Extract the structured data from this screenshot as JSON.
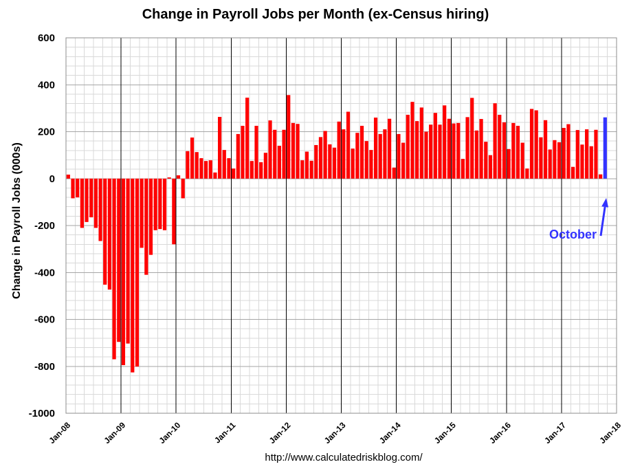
{
  "chart_data": {
    "type": "bar",
    "title": "Change in Payroll Jobs per Month (ex-Census hiring)",
    "xlabel": "",
    "ylabel": "Change in Payroll Jobs (000s)",
    "ylim": [
      -1000,
      600
    ],
    "yticks": [
      600,
      400,
      200,
      0,
      -200,
      -400,
      -600,
      -800,
      -1000
    ],
    "y_minor_step": 40,
    "xlim_months": [
      0,
      120
    ],
    "months_per_tick": 12,
    "x_minor_step_months": 2,
    "x_tick_labels": [
      "Jan-08",
      "Jan-09",
      "Jan-10",
      "Jan-11",
      "Jan-12",
      "Jan-13",
      "Jan-14",
      "Jan-15",
      "Jan-16",
      "Jan-17",
      "Jan-18"
    ],
    "grid": true,
    "series": [
      {
        "color": "#FF0000",
        "values": [
          17,
          -84,
          -80,
          -210,
          -185,
          -165,
          -210,
          -266,
          -452,
          -473,
          -770,
          -696,
          -795,
          -703,
          -826,
          -801,
          -295,
          -410,
          -325,
          -220,
          -215,
          -220,
          5,
          -280,
          14,
          -84,
          117,
          175,
          113,
          87,
          75,
          78,
          26,
          263,
          122,
          87,
          43,
          190,
          225,
          345,
          75,
          225,
          70,
          110,
          248,
          208,
          140,
          208,
          356,
          237,
          233,
          78,
          115,
          76,
          143,
          177,
          203,
          146,
          132,
          243,
          210,
          285,
          128,
          195,
          225,
          160,
          122,
          260,
          190,
          210,
          255,
          47,
          190,
          153,
          272,
          327,
          245,
          303,
          200,
          230,
          280,
          230,
          312,
          255,
          235,
          237,
          84,
          262,
          344,
          205,
          254,
          157,
          100,
          321,
          272,
          240,
          126,
          237,
          225,
          153,
          43,
          297,
          291,
          176,
          249,
          124,
          164,
          155,
          216,
          232,
          50,
          207,
          145,
          210,
          138,
          208,
          18,
          261
        ]
      }
    ],
    "highlight": {
      "index": 117,
      "color": "#3333FF",
      "annotation": "October"
    },
    "source_text": "http://www.calculatedriskblog.com/"
  }
}
